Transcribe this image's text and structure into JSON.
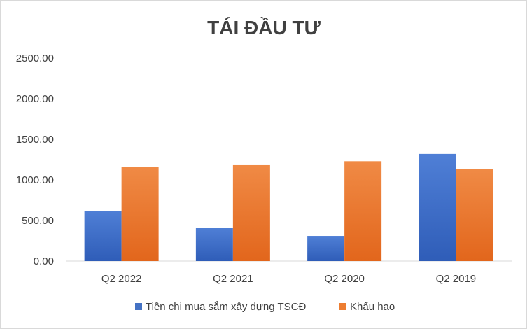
{
  "chart_data": {
    "type": "bar",
    "title": "TÁI ĐẦU TƯ",
    "xlabel": "",
    "ylabel": "",
    "categories": [
      "Q2 2022",
      "Q2 2021",
      "Q2 2020",
      "Q2 2019"
    ],
    "ylim": [
      0,
      2500
    ],
    "yticks": [
      0,
      500,
      1000,
      1500,
      2000,
      2500
    ],
    "ytick_labels": [
      "0.00",
      "500.00",
      "1000.00",
      "1500.00",
      "2000.00",
      "2500.00"
    ],
    "grid": false,
    "legend_position": "bottom",
    "series": [
      {
        "name": "Tiền chi mua sắm xây dựng TSCĐ",
        "color": "#4472C4",
        "values": [
          620,
          410,
          310,
          1320
        ]
      },
      {
        "name": "Khấu hao",
        "color": "#ED7D31",
        "values": [
          1160,
          1190,
          1230,
          1130
        ]
      }
    ]
  }
}
